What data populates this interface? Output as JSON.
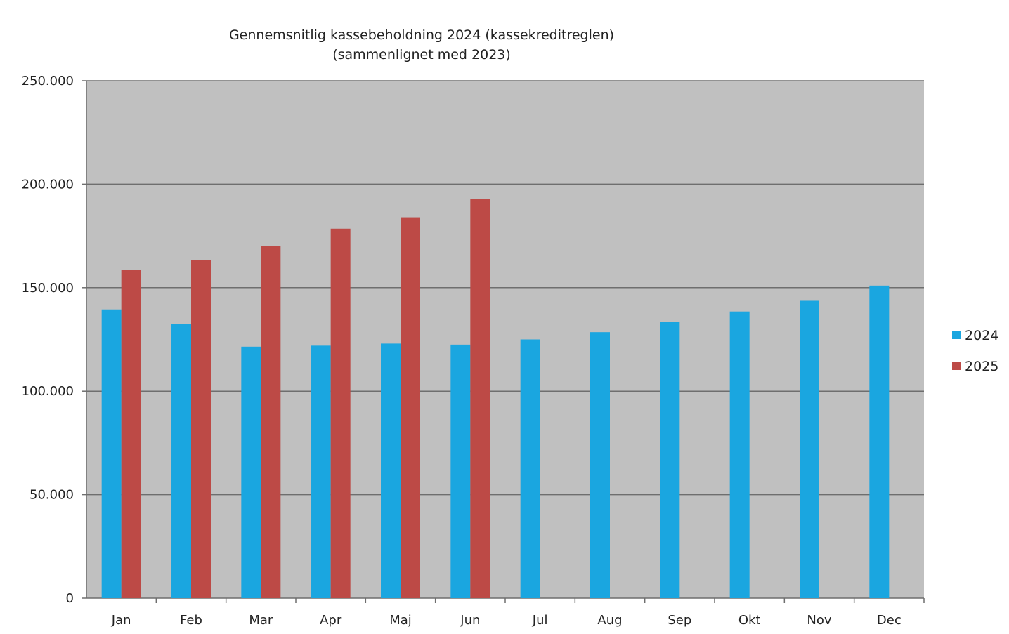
{
  "chart_data": {
    "type": "bar",
    "title": "Gennemsnitlig kassebeholdning 2024 (kassekreditreglen)",
    "subtitle": "(sammenlignet med 2023)",
    "xlabel": "",
    "ylabel": "",
    "categories": [
      "Jan",
      "Feb",
      "Mar",
      "Apr",
      "Maj",
      "Jun",
      "Jul",
      "Aug",
      "Sep",
      "Okt",
      "Nov",
      "Dec"
    ],
    "series": [
      {
        "name": "2024",
        "color": "#1aa6e0",
        "values": [
          139500,
          132500,
          121500,
          122000,
          123000,
          122500,
          125000,
          128500,
          133500,
          138500,
          144000,
          151000
        ]
      },
      {
        "name": "2025",
        "color": "#bd4a46",
        "values": [
          158500,
          163500,
          170000,
          178500,
          184000,
          193000,
          null,
          null,
          null,
          null,
          null,
          null
        ]
      }
    ],
    "ylim": [
      0,
      250000
    ],
    "yticks": [
      0,
      50000,
      100000,
      150000,
      200000,
      250000
    ],
    "ytick_labels": [
      "0",
      "50.000",
      "100.000",
      "150.000",
      "200.000",
      "250.000"
    ],
    "grid": true,
    "plot_background": "#c0c0c0",
    "legend_position": "right"
  }
}
